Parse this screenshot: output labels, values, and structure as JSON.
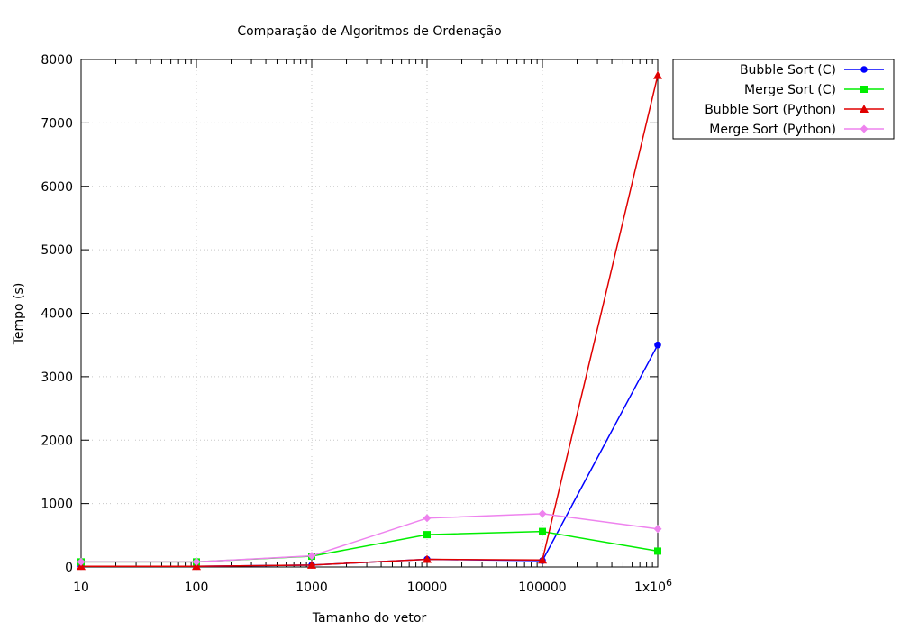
{
  "chart_data": {
    "type": "line",
    "title": "Comparação de Algoritmos de Ordenação",
    "xlabel": "Tamanho do vetor",
    "ylabel": "Tempo (s)",
    "x_scale": "log",
    "xlim": [
      10,
      1000000
    ],
    "ylim": [
      0,
      8000
    ],
    "grid": true,
    "legend_position": "outside-top-right",
    "x_ticks": [
      10,
      100,
      1000,
      10000,
      100000,
      1000000
    ],
    "x_tick_labels": [
      "10",
      "100",
      "1000",
      "10000",
      "100000",
      "1x10"
    ],
    "x_tick_superscript": [
      "",
      "",
      "",
      "",
      "",
      "6"
    ],
    "y_ticks": [
      0,
      1000,
      2000,
      3000,
      4000,
      5000,
      6000,
      7000,
      8000
    ],
    "y_tick_labels": [
      "0",
      "1000",
      "2000",
      "3000",
      "4000",
      "5000",
      "6000",
      "7000",
      "8000"
    ],
    "x": [
      10,
      100,
      1000,
      10000,
      100000,
      1000000
    ],
    "series": [
      {
        "name": "Bubble Sort (C)",
        "color": "#0000ff",
        "marker": "circle",
        "values": [
          10,
          10,
          30,
          120,
          100,
          3500
        ]
      },
      {
        "name": "Merge Sort (C)",
        "color": "#00ee00",
        "marker": "square",
        "values": [
          80,
          80,
          170,
          510,
          560,
          250
        ]
      },
      {
        "name": "Bubble Sort (Python)",
        "color": "#e00000",
        "marker": "triangle",
        "values": [
          10,
          10,
          30,
          120,
          110,
          7750
        ]
      },
      {
        "name": "Merge Sort (Python)",
        "color": "#ee82ee",
        "marker": "diamond",
        "values": [
          80,
          80,
          175,
          770,
          840,
          600
        ]
      }
    ]
  }
}
